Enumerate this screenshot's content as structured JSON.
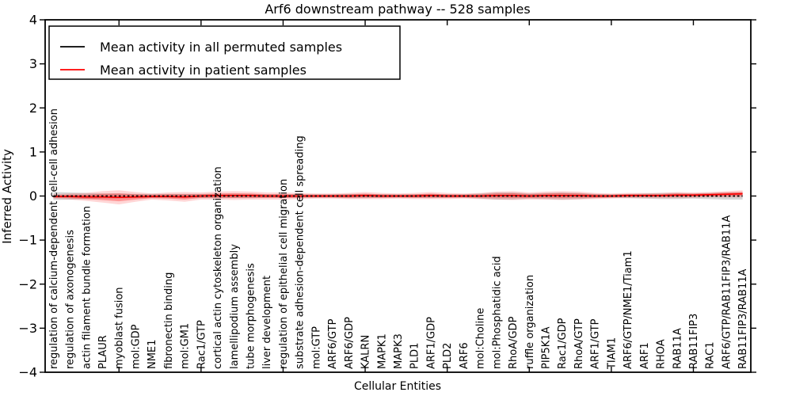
{
  "title": "Arf6 downstream pathway -- 528 samples",
  "axes": {
    "ylabel": "Inferred Activity",
    "xlabel": "Cellular Entities"
  },
  "legend": {
    "position": "upper left",
    "entries": [
      {
        "label": "Mean activity in all permuted samples",
        "color": "#000000"
      },
      {
        "label": "Mean activity in patient samples",
        "color": "#ff0000"
      }
    ]
  },
  "colors": {
    "patient_line": "#ff0000",
    "permuted_line": "#000000",
    "patient_band": "rgba(255,0,0,0.16)",
    "patient_band_inner": "rgba(255,0,0,0.30)",
    "permuted_band": "rgba(120,120,120,0.30)",
    "frame": "#000000",
    "background": "#ffffff"
  },
  "chart_data": {
    "type": "line",
    "title": "Arf6 downstream pathway -- 528 samples",
    "xlabel": "Cellular Entities",
    "ylabel": "Inferred Activity",
    "ylim": [
      -4,
      4
    ],
    "yticks": [
      4,
      3,
      2,
      1,
      0,
      -1,
      -2,
      -3,
      -4
    ],
    "xticks": [
      5,
      10,
      15,
      20,
      25,
      30,
      35,
      40
    ],
    "grid": false,
    "legend_position": "upper left",
    "categories": [
      "regulation of calcium-dependent cell-cell adhesion",
      "regulation of axonogenesis",
      "actin filament bundle formation",
      "PLAUR",
      "myoblast fusion",
      "mol:GDP",
      "NME1",
      "fibronectin binding",
      "mol:GM1",
      "Rac1/GTP",
      "cortical actin cytoskeleton organization",
      "lamellipodium assembly",
      "tube morphogenesis",
      "liver development",
      "regulation of epithelial cell migration",
      "substrate adhesion-dependent cell spreading",
      "mol:GTP",
      "ARF6/GTP",
      "ARF6/GDP",
      "KALRN",
      "MAPK1",
      "MAPK3",
      "PLD1",
      "ARF1/GDP",
      "PLD2",
      "ARF6",
      "mol:Choline",
      "mol:Phosphatidic acid",
      "RhoA/GDP",
      "ruffle organization",
      "PIP5K1A",
      "Rac1/GDP",
      "RhoA/GTP",
      "ARF1/GTP",
      "TIAM1",
      "ARF6/GTP/NME1/Tiam1",
      "ARF1",
      "RHOA",
      "RAB11A",
      "RAB11FIP3",
      "RAC1",
      "ARF6/GTP/RAB11FIP3/RAB11A",
      "RAB11FIP3/RAB11A"
    ],
    "series": [
      {
        "name": "Mean activity in all permuted samples",
        "color": "#000000",
        "style": "dashed",
        "values": [
          0,
          0,
          0,
          0,
          0,
          0,
          0,
          0,
          0,
          0,
          0,
          0,
          0,
          0,
          0,
          0,
          0,
          0,
          0,
          0,
          0,
          0,
          0,
          0,
          0,
          0,
          0,
          0,
          0,
          0,
          0,
          0,
          0,
          0,
          0,
          0,
          0,
          0,
          0,
          0,
          0,
          0,
          0
        ],
        "band_half_width": [
          0.09,
          0.08,
          0.07,
          0.06,
          0.06,
          0.05,
          0.05,
          0.05,
          0.05,
          0.05,
          0.05,
          0.05,
          0.05,
          0.04,
          0.04,
          0.04,
          0.04,
          0.04,
          0.05,
          0.05,
          0.04,
          0.04,
          0.04,
          0.05,
          0.04,
          0.04,
          0.06,
          0.08,
          0.08,
          0.06,
          0.07,
          0.08,
          0.07,
          0.05,
          0.04,
          0.05,
          0.06,
          0.07,
          0.07,
          0.06,
          0.07,
          0.08,
          0.08
        ]
      },
      {
        "name": "Mean activity in patient samples",
        "color": "#ff0000",
        "style": "solid",
        "values": [
          -0.01,
          -0.01,
          -0.02,
          -0.02,
          -0.03,
          -0.02,
          -0.01,
          -0.01,
          -0.02,
          0.0,
          0.01,
          0.01,
          0.01,
          0.0,
          0.0,
          0.0,
          0.0,
          0.0,
          0.0,
          0.01,
          0.0,
          0.0,
          0.0,
          0.01,
          0.0,
          0.0,
          0.0,
          0.01,
          0.01,
          0.0,
          0.01,
          0.01,
          0.01,
          0.0,
          0.0,
          0.01,
          0.01,
          0.01,
          0.02,
          0.02,
          0.03,
          0.04,
          0.05
        ],
        "band_half_width": [
          0.05,
          0.07,
          0.09,
          0.13,
          0.16,
          0.11,
          0.07,
          0.09,
          0.11,
          0.08,
          0.09,
          0.1,
          0.09,
          0.08,
          0.08,
          0.07,
          0.06,
          0.06,
          0.07,
          0.08,
          0.07,
          0.06,
          0.07,
          0.08,
          0.07,
          0.06,
          0.07,
          0.09,
          0.1,
          0.08,
          0.09,
          0.1,
          0.09,
          0.07,
          0.06,
          0.06,
          0.06,
          0.06,
          0.07,
          0.06,
          0.06,
          0.07,
          0.08
        ]
      }
    ]
  }
}
